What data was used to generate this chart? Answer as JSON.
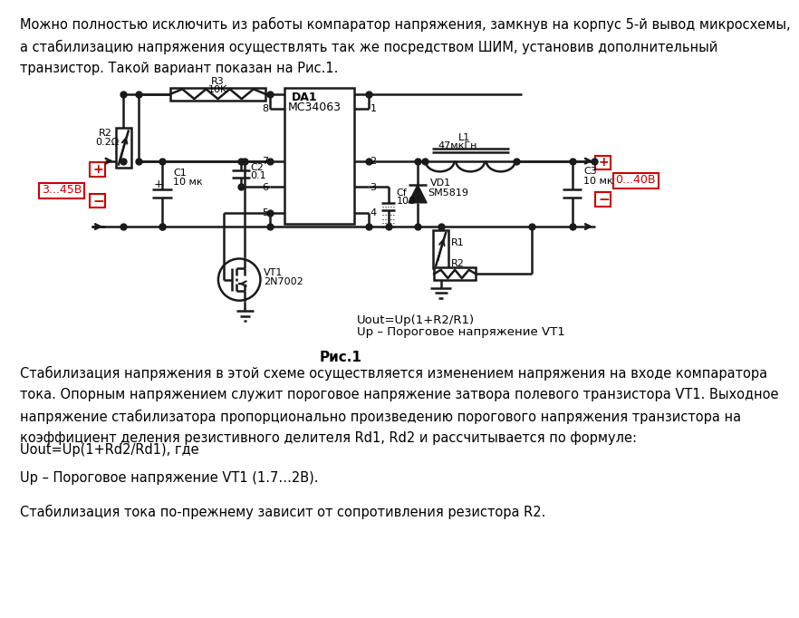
{
  "top_text": "Можно полностью исключить из работы компаратор напряжения, замкнув на корпус 5-й вывод микросхемы,\nа стабилизацию напряжения осуществлять так же посредством ШИМ, установив дополнительный\nтранзистор. Такой вариант показан на Рис.1.",
  "fig_caption": "Рис.1",
  "bottom_text_1": "Стабилизация напряжения в этой схеме осуществляется изменением напряжения на входе компаратора\nтока. Опорным напряжением служит пороговое напряжение затвора полевого транзистора VT1. Выходное\nнапряжение стабилизатора пропорционально произведению порогового напряжения транзистора на\nкоэффициент деления резистивного делителя Rd1, Rd2 и рассчитывается по формуле:",
  "bottom_text_2": "Uout=Up(1+Rd2/Rd1), где",
  "bottom_text_3": "Up – Пороговое напряжение VT1 (1.7…2В).",
  "bottom_text_4": "Стабилизация тока по-прежнему зависит от сопротивления резистора R2.",
  "bg_color": "#ffffff",
  "text_color": "#000000",
  "red_color": "#cc0000",
  "circuit_line_color": "#1a1a1a"
}
